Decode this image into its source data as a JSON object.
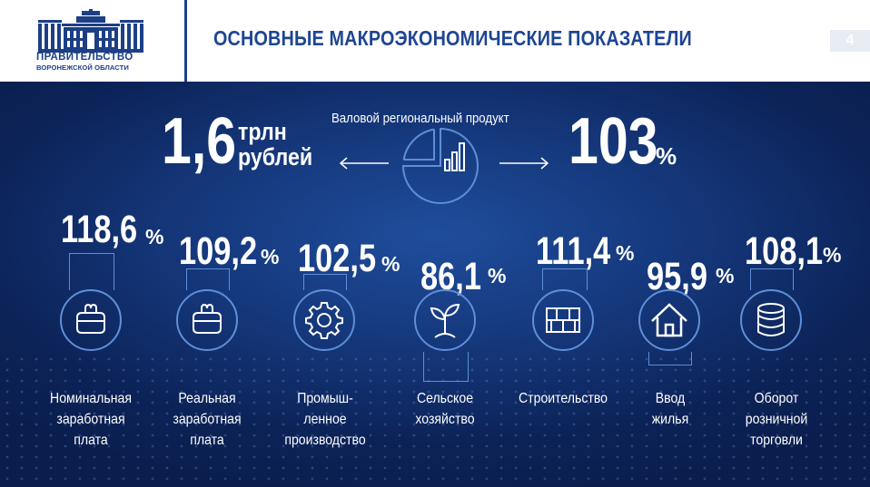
{
  "header": {
    "logo_line1": "ПРАВИТЕЛЬСТВО",
    "logo_line2": "ВОРОНЕЖСКОЙ ОБЛАСТИ",
    "title": "ОСНОВНЫЕ МАКРОЭКОНОМИЧЕСКИЕ ПОКАЗАТЕЛИ",
    "page_number": "4"
  },
  "gdp": {
    "label": "Валовой региональный продукт",
    "value": "1,6",
    "unit_line1": "трлн",
    "unit_line2": "рублей",
    "index": "103",
    "index_unit": "%"
  },
  "indicators": [
    {
      "value": "118,6",
      "unit": "%",
      "label_lines": [
        "Номинальная",
        "заработная",
        "плата"
      ],
      "icon": "wallet-icon"
    },
    {
      "value": "109,2",
      "unit": "%",
      "label_lines": [
        "Реальная",
        "заработная",
        "плата"
      ],
      "icon": "wallet-icon"
    },
    {
      "value": "102,5",
      "unit": "%",
      "label_lines": [
        "Промыш-",
        "ленное",
        "производство"
      ],
      "icon": "gear-icon"
    },
    {
      "value": "86,1",
      "unit": "%",
      "label_lines": [
        "Сельское",
        "хозяйство"
      ],
      "icon": "sprout-icon"
    },
    {
      "value": "111,4",
      "unit": "%",
      "label_lines": [
        "Строительство"
      ],
      "icon": "bricks-icon"
    },
    {
      "value": "95,9",
      "unit": "%",
      "label_lines": [
        "Ввод",
        "жилья"
      ],
      "icon": "house-icon"
    },
    {
      "value": "108,1",
      "unit": "%",
      "label_lines": [
        "Оборот",
        "розничной",
        "торговли"
      ],
      "icon": "coins-icon"
    }
  ],
  "colors": {
    "brand_blue": "#1c3f86",
    "background_dark": "#0c2358",
    "accent_line": "#5e8fd8"
  }
}
